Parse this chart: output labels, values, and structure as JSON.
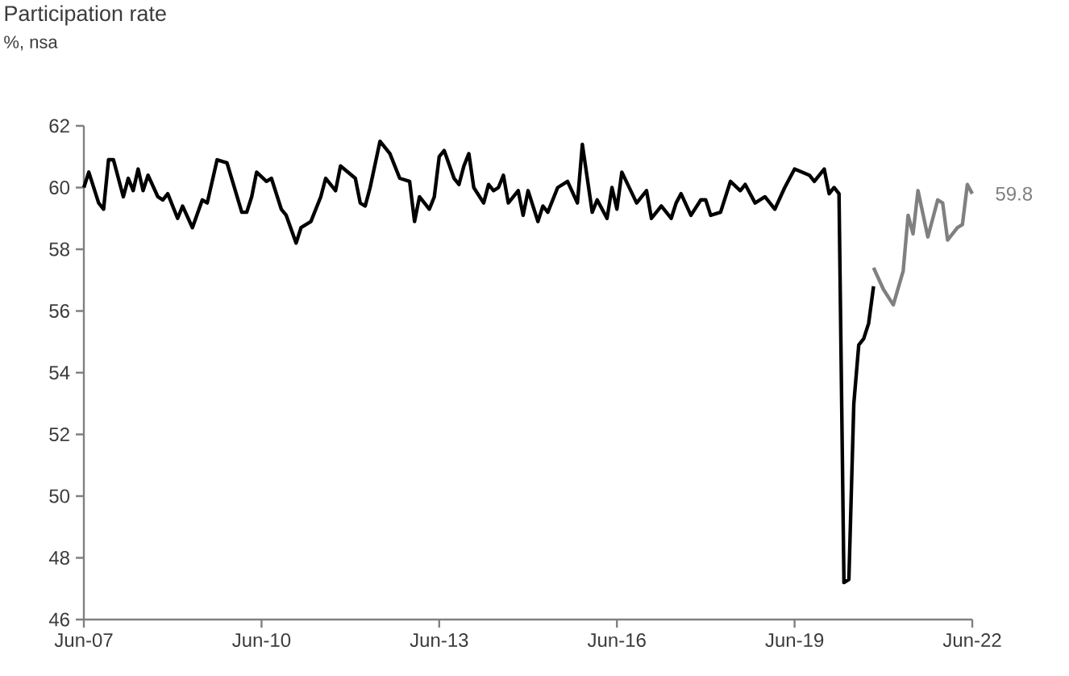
{
  "chart_data": {
    "type": "line",
    "title": "Participation rate",
    "subtitle": "%, nsa",
    "xlim": [
      "2007-06",
      "2022-06"
    ],
    "xticks": [
      {
        "value": "2007-06",
        "label": "Jun-07"
      },
      {
        "value": "2010-06",
        "label": "Jun-10"
      },
      {
        "value": "2013-06",
        "label": "Jun-13"
      },
      {
        "value": "2016-06",
        "label": "Jun-16"
      },
      {
        "value": "2019-06",
        "label": "Jun-19"
      },
      {
        "value": "2022-06",
        "label": "Jun-22"
      }
    ],
    "ylim": [
      46,
      62
    ],
    "yticks": [
      46,
      48,
      50,
      52,
      54,
      56,
      58,
      60,
      62
    ],
    "grid": false,
    "series": [
      {
        "color": "#000000",
        "x": [
          "2007-06",
          "2007-07",
          "2007-09",
          "2007-10",
          "2007-11",
          "2007-12",
          "2008-02",
          "2008-03",
          "2008-04",
          "2008-05",
          "2008-06",
          "2008-07",
          "2008-09",
          "2008-10",
          "2008-11",
          "2009-01",
          "2009-02",
          "2009-04",
          "2009-06",
          "2009-07",
          "2009-09",
          "2009-11",
          "2010-02",
          "2010-03",
          "2010-04",
          "2010-05",
          "2010-07",
          "2010-08",
          "2010-10",
          "2010-11",
          "2011-01",
          "2011-02",
          "2011-04",
          "2011-06",
          "2011-07",
          "2011-09",
          "2011-10",
          "2012-01",
          "2012-02",
          "2012-03",
          "2012-04",
          "2012-06",
          "2012-08",
          "2012-10",
          "2012-12",
          "2013-01",
          "2013-02",
          "2013-04",
          "2013-05",
          "2013-06",
          "2013-07",
          "2013-09",
          "2013-10",
          "2013-11",
          "2013-12",
          "2014-01",
          "2014-03",
          "2014-04",
          "2014-05",
          "2014-06",
          "2014-07",
          "2014-08",
          "2014-10",
          "2014-11",
          "2014-12",
          "2015-02",
          "2015-03",
          "2015-04",
          "2015-06",
          "2015-08",
          "2015-10",
          "2015-11",
          "2016-01",
          "2016-02",
          "2016-04",
          "2016-05",
          "2016-06",
          "2016-07",
          "2016-10",
          "2016-12",
          "2017-01",
          "2017-03",
          "2017-05",
          "2017-06",
          "2017-07",
          "2017-09",
          "2017-11",
          "2017-12",
          "2018-01",
          "2018-03",
          "2018-05",
          "2018-07",
          "2018-08",
          "2018-10",
          "2018-12",
          "2019-02",
          "2019-04",
          "2019-06",
          "2019-09",
          "2019-10",
          "2019-12",
          "2020-01",
          "2020-02",
          "2020-03",
          "2020-04",
          "2020-05",
          "2020-06",
          "2020-07",
          "2020-08",
          "2020-09",
          "2020-10"
        ],
        "values": [
          60.0,
          60.5,
          59.5,
          59.3,
          60.9,
          60.9,
          59.7,
          60.3,
          59.9,
          60.6,
          59.9,
          60.4,
          59.7,
          59.6,
          59.8,
          59.0,
          59.4,
          58.7,
          59.6,
          59.5,
          60.9,
          60.8,
          59.2,
          59.2,
          59.7,
          60.5,
          60.2,
          60.3,
          59.3,
          59.1,
          58.2,
          58.7,
          58.9,
          59.7,
          60.3,
          59.9,
          60.7,
          60.3,
          59.5,
          59.4,
          60.0,
          61.5,
          61.1,
          60.3,
          60.2,
          58.9,
          59.7,
          59.3,
          59.7,
          61.0,
          61.2,
          60.3,
          60.1,
          60.7,
          61.1,
          60.0,
          59.5,
          60.1,
          59.9,
          60.0,
          60.4,
          59.5,
          59.9,
          59.1,
          59.9,
          58.9,
          59.4,
          59.2,
          60.0,
          60.2,
          59.5,
          61.4,
          59.2,
          59.6,
          59.0,
          60.0,
          59.3,
          60.5,
          59.5,
          59.9,
          59.0,
          59.4,
          59.0,
          59.5,
          59.8,
          59.1,
          59.6,
          59.6,
          59.1,
          59.2,
          60.2,
          59.9,
          60.1,
          59.5,
          59.7,
          59.3,
          60.0,
          60.6,
          60.4,
          60.2,
          60.6,
          59.8,
          60.0,
          59.8,
          47.2,
          47.3,
          53.0,
          54.9,
          55.1,
          55.6,
          56.8
        ]
      },
      {
        "color": "#808080",
        "x": [
          "2020-10",
          "2020-12",
          "2021-02",
          "2021-04",
          "2021-05",
          "2021-06",
          "2021-07",
          "2021-09",
          "2021-11",
          "2021-12",
          "2022-01",
          "2022-03",
          "2022-04",
          "2022-05",
          "2022-06"
        ],
        "values": [
          57.4,
          56.7,
          56.2,
          57.3,
          59.1,
          58.5,
          59.9,
          58.4,
          59.6,
          59.5,
          58.3,
          58.7,
          58.8,
          60.1,
          59.8
        ],
        "value_labels": [
          null,
          null,
          null,
          null,
          null,
          null,
          null,
          null,
          null,
          null,
          null,
          null,
          null,
          null,
          "59.8"
        ]
      }
    ]
  }
}
